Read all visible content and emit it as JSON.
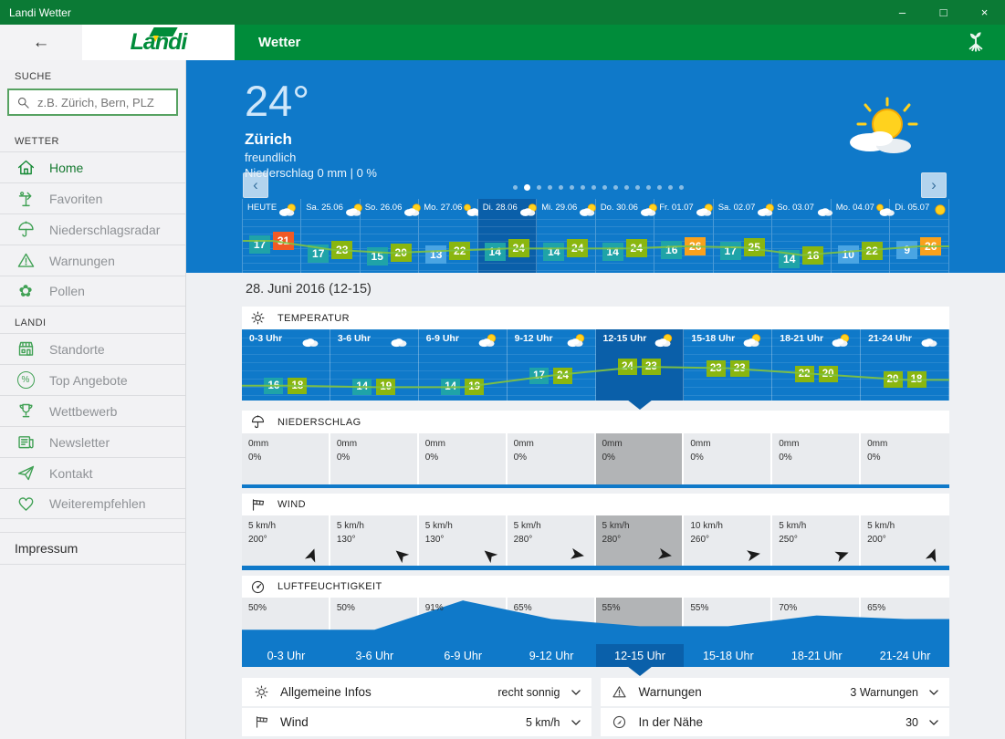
{
  "titlebar": {
    "title": "Landi Wetter",
    "minimize": "–",
    "maximize": "□",
    "close": "×"
  },
  "header": {
    "back_arrow": "←",
    "logo_text": "Landi",
    "app_title": "Wetter"
  },
  "sidebar": {
    "search_label": "SUCHE",
    "search_placeholder": "z.B. Zürich, Bern, PLZ",
    "sections": [
      {
        "label": "WETTER",
        "items": [
          {
            "icon": "home",
            "label": "Home",
            "active": true
          },
          {
            "icon": "weathervane",
            "label": "Favoriten",
            "active": false
          },
          {
            "icon": "umbrella",
            "label": "Niederschlagsradar",
            "active": false
          },
          {
            "icon": "warning",
            "label": "Warnungen",
            "active": false
          },
          {
            "icon": "flower",
            "label": "Pollen",
            "active": false
          }
        ]
      },
      {
        "label": "LANDI",
        "items": [
          {
            "icon": "shop",
            "label": "Standorte",
            "active": false
          },
          {
            "icon": "percent",
            "label": "Top Angebote",
            "active": false
          },
          {
            "icon": "trophy",
            "label": "Wettbewerb",
            "active": false
          },
          {
            "icon": "newspaper",
            "label": "Newsletter",
            "active": false
          },
          {
            "icon": "paper-plane",
            "label": "Kontakt",
            "active": false
          },
          {
            "icon": "heart",
            "label": "Weiterempfehlen",
            "active": false
          }
        ]
      }
    ],
    "impressum": "Impressum"
  },
  "hero": {
    "temperature": "24°",
    "city": "Zürich",
    "condition": "freundlich",
    "precipitation": "Niederschlag 0 mm | 0 %",
    "prev_arrow": "‹",
    "next_arrow": "›",
    "dot_count": 16,
    "active_dot": 1,
    "days": [
      {
        "label": "HEUTE",
        "icon": "sun-cloud",
        "min": 17,
        "max": 31,
        "selected": false
      },
      {
        "label": "Sa. 25.06",
        "icon": "sun-cloud",
        "min": 17,
        "max": 23,
        "selected": false
      },
      {
        "label": "So. 26.06",
        "icon": "sun-cloud",
        "min": 15,
        "max": 20,
        "selected": false
      },
      {
        "label": "Mo. 27.06",
        "icon": "cloud-sun",
        "min": 13,
        "max": 22,
        "selected": false
      },
      {
        "label": "Di. 28.06",
        "icon": "sun-cloud",
        "min": 14,
        "max": 24,
        "selected": true
      },
      {
        "label": "Mi. 29.06",
        "icon": "sun-cloud",
        "min": 14,
        "max": 24,
        "selected": false
      },
      {
        "label": "Do. 30.06",
        "icon": "sun-cloud",
        "min": 14,
        "max": 24,
        "selected": false
      },
      {
        "label": "Fr. 01.07",
        "icon": "sun-cloud",
        "min": 16,
        "max": 26,
        "selected": false
      },
      {
        "label": "Sa. 02.07",
        "icon": "sun-cloud",
        "min": 17,
        "max": 25,
        "selected": false
      },
      {
        "label": "So. 03.07",
        "icon": "cloud",
        "min": 14,
        "max": 18,
        "selected": false
      },
      {
        "label": "Mo. 04.07",
        "icon": "cloud-sun",
        "min": 10,
        "max": 22,
        "selected": false
      },
      {
        "label": "Di. 05.07",
        "icon": "sun",
        "min": 9,
        "max": 26,
        "selected": false
      }
    ]
  },
  "forecast": {
    "date_title": "28. Juni 2016 (12-15)",
    "hours": [
      "0-3 Uhr",
      "3-6 Uhr",
      "6-9 Uhr",
      "9-12 Uhr",
      "12-15 Uhr",
      "15-18 Uhr",
      "18-21 Uhr",
      "21-24 Uhr"
    ],
    "selected_index": 4,
    "temperature": {
      "title": "TEMPERATUR",
      "cols": [
        {
          "icon": "cloud",
          "a": 16,
          "b": 18
        },
        {
          "icon": "cloud",
          "a": 14,
          "b": 19
        },
        {
          "icon": "sun-cloud",
          "a": 14,
          "b": 19
        },
        {
          "icon": "sun-cloud",
          "a": 17,
          "b": 24
        },
        {
          "icon": "sun-cloud",
          "a": 24,
          "b": 23
        },
        {
          "icon": "sun-cloud",
          "a": 23,
          "b": 23
        },
        {
          "icon": "sun-cloud",
          "a": 22,
          "b": 20
        },
        {
          "icon": "cloud",
          "a": 20,
          "b": 18
        }
      ]
    },
    "precipitation": {
      "title": "NIEDERSCHLAG",
      "cols": [
        {
          "mm": "0mm",
          "pct": "0%"
        },
        {
          "mm": "0mm",
          "pct": "0%"
        },
        {
          "mm": "0mm",
          "pct": "0%"
        },
        {
          "mm": "0mm",
          "pct": "0%"
        },
        {
          "mm": "0mm",
          "pct": "0%"
        },
        {
          "mm": "0mm",
          "pct": "0%"
        },
        {
          "mm": "0mm",
          "pct": "0%"
        },
        {
          "mm": "0mm",
          "pct": "0%"
        }
      ]
    },
    "wind": {
      "title": "WIND",
      "cols": [
        {
          "speed": "5 km/h",
          "dir": "200°",
          "deg": 200
        },
        {
          "speed": "5 km/h",
          "dir": "130°",
          "deg": 130
        },
        {
          "speed": "5 km/h",
          "dir": "130°",
          "deg": 130
        },
        {
          "speed": "5 km/h",
          "dir": "280°",
          "deg": 280
        },
        {
          "speed": "5 km/h",
          "dir": "280°",
          "deg": 280
        },
        {
          "speed": "10 km/h",
          "dir": "260°",
          "deg": 260
        },
        {
          "speed": "5 km/h",
          "dir": "250°",
          "deg": 250
        },
        {
          "speed": "5 km/h",
          "dir": "200°",
          "deg": 200
        }
      ]
    },
    "humidity": {
      "title": "LUFTFEUCHTIGKEIT",
      "cols": [
        {
          "pct": "50%",
          "v": 50
        },
        {
          "pct": "50%",
          "v": 50
        },
        {
          "pct": "91%",
          "v": 91
        },
        {
          "pct": "65%",
          "v": 65
        },
        {
          "pct": "55%",
          "v": 55
        },
        {
          "pct": "55%",
          "v": 55
        },
        {
          "pct": "70%",
          "v": 70
        },
        {
          "pct": "65%",
          "v": 65
        }
      ]
    }
  },
  "accordions": [
    {
      "icon": "sun-head",
      "label": "Allgemeine Infos",
      "value": "recht sonnig"
    },
    {
      "icon": "windsock",
      "label": "Wind",
      "value": "5 km/h"
    },
    {
      "icon": "warning",
      "label": "Warnungen",
      "value": "3 Warnungen"
    },
    {
      "icon": "compass",
      "label": "In der Nähe",
      "value": "30"
    }
  ],
  "colors": {
    "titlebar_green": "#0b7a35",
    "brand_green": "#008c3a",
    "hero_blue": "#0f79c9",
    "selected_blue": "#0a5fa9",
    "chip_teal": "#1fa3a8",
    "chip_lightblue": "#4aa5e3",
    "chip_green": "#8ab60f",
    "chip_orange": "#f9a11c",
    "chip_red": "#f15a25",
    "trend_green": "#7fc241",
    "cell_gray": "#e9ebee",
    "cell_gray_selected": "#b2b4b6"
  }
}
